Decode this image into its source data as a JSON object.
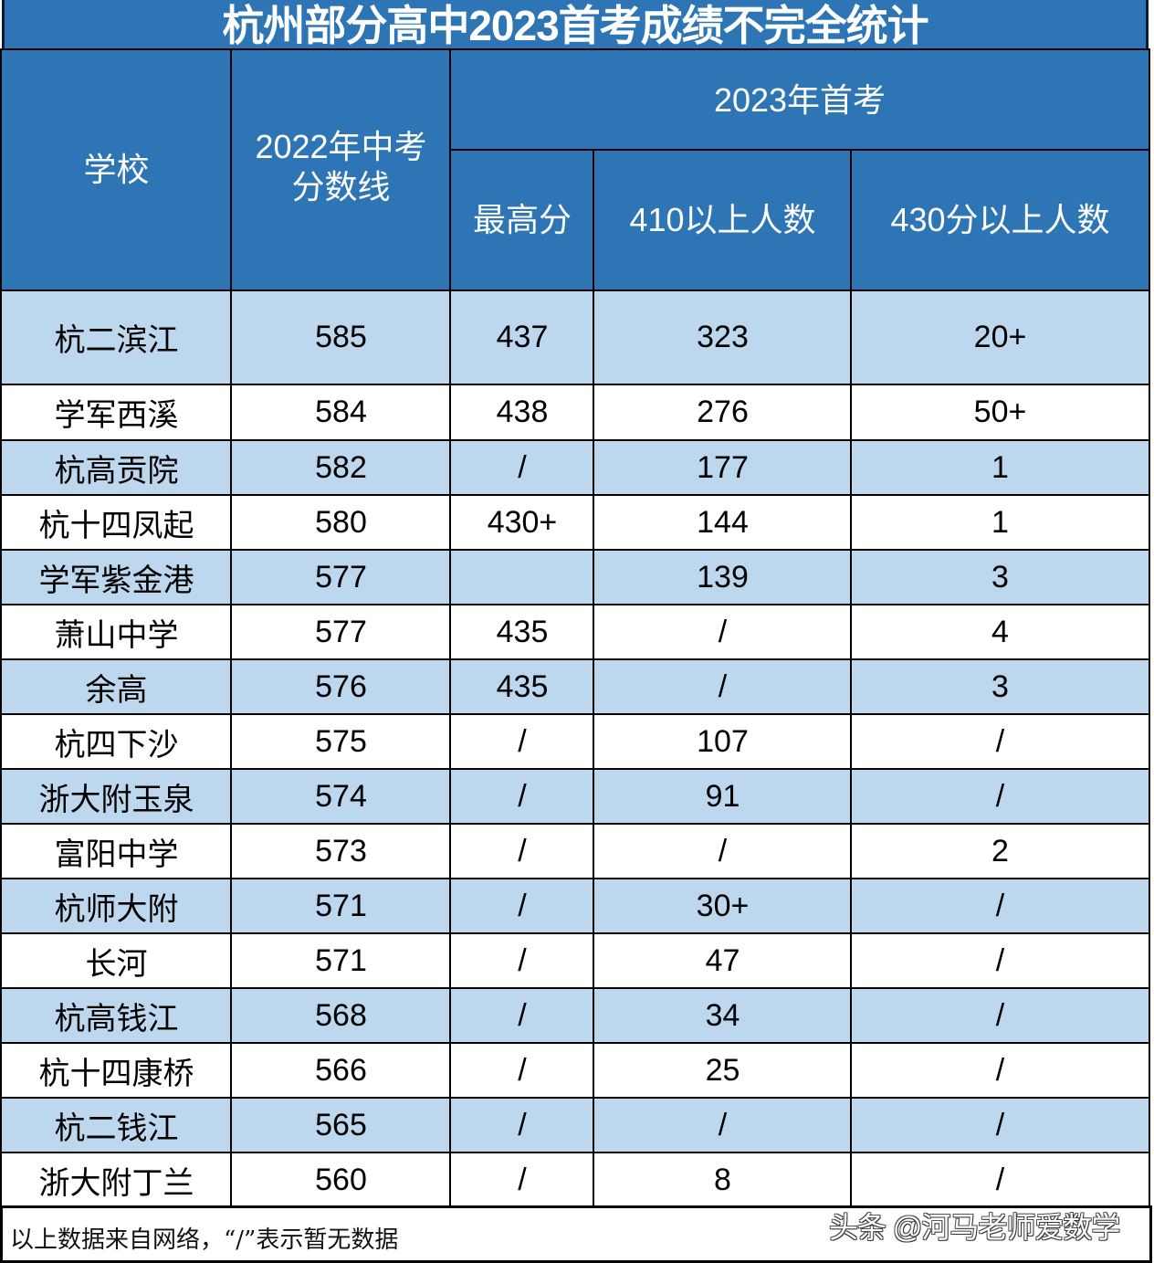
{
  "title": "杭州部分高中2023首考成绩不完全统计",
  "header": {
    "school": "学校",
    "cutoff_2022_line1": "2022年中考",
    "cutoff_2022_line2": "分数线",
    "group_2023": "2023年首考",
    "max_score": "最高分",
    "above_410": "410以上人数",
    "above_430": "430分以上人数"
  },
  "colors": {
    "header_blue": "#2e75b6",
    "row_light_blue": "#bdd7ee",
    "row_white": "#ffffff",
    "border": "#000000"
  },
  "rows": [
    {
      "school": "杭二滨江",
      "cutoff_2022": "585",
      "max_score": "437",
      "above_410": "323",
      "above_430": "20+"
    },
    {
      "school": "学军西溪",
      "cutoff_2022": "584",
      "max_score": "438",
      "above_410": "276",
      "above_430": "50+"
    },
    {
      "school": "杭高贡院",
      "cutoff_2022": "582",
      "max_score": "/",
      "above_410": "177",
      "above_430": "1"
    },
    {
      "school": "杭十四凤起",
      "cutoff_2022": "580",
      "max_score": "430+",
      "above_410": "144",
      "above_430": "1"
    },
    {
      "school": "学军紫金港",
      "cutoff_2022": "577",
      "max_score": "",
      "above_410": "139",
      "above_430": "3"
    },
    {
      "school": "萧山中学",
      "cutoff_2022": "577",
      "max_score": "435",
      "above_410": "/",
      "above_430": "4"
    },
    {
      "school": "余高",
      "cutoff_2022": "576",
      "max_score": "435",
      "above_410": "/",
      "above_430": "3"
    },
    {
      "school": "杭四下沙",
      "cutoff_2022": "575",
      "max_score": "/",
      "above_410": "107",
      "above_430": "/"
    },
    {
      "school": "浙大附玉泉",
      "cutoff_2022": "574",
      "max_score": "/",
      "above_410": "91",
      "above_430": "/"
    },
    {
      "school": "富阳中学",
      "cutoff_2022": "573",
      "max_score": "/",
      "above_410": "/",
      "above_430": "2"
    },
    {
      "school": "杭师大附",
      "cutoff_2022": "571",
      "max_score": "/",
      "above_410": "30+",
      "above_430": "/"
    },
    {
      "school": "长河",
      "cutoff_2022": "571",
      "max_score": "/",
      "above_410": "47",
      "above_430": "/"
    },
    {
      "school": "杭高钱江",
      "cutoff_2022": "568",
      "max_score": "/",
      "above_410": "34",
      "above_430": "/"
    },
    {
      "school": "杭十四康桥",
      "cutoff_2022": "566",
      "max_score": "/",
      "above_410": "25",
      "above_430": "/"
    },
    {
      "school": "杭二钱江",
      "cutoff_2022": "565",
      "max_score": "/",
      "above_410": "/",
      "above_430": "/"
    },
    {
      "school": "浙大附丁兰",
      "cutoff_2022": "560",
      "max_score": "/",
      "above_410": "8",
      "above_430": "/"
    }
  ],
  "footer": {
    "note": "以上数据来自网络，“/”表示暂无数据",
    "watermark": "头条 @河马老师爱数学"
  }
}
